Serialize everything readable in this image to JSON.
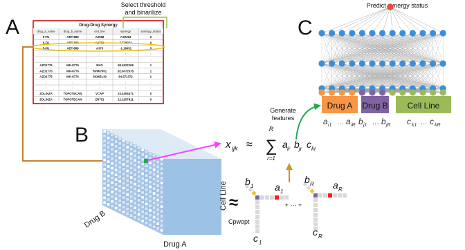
{
  "panel_labels": {
    "a": "A",
    "b": "B",
    "c": "C"
  },
  "table": {
    "title": "Drug-Drug Synergy",
    "columns": [
      "drug_a_name",
      "drug_b_name",
      "cell_line",
      "synergy",
      "synergy_status"
    ],
    "rows": [
      [
        "5-FU",
        "ABT-888",
        "A2058",
        "7.69353",
        "0"
      ],
      [
        "5-FU",
        "ABT-888",
        "A2780",
        "7.778053",
        "0"
      ],
      [
        "5-FU",
        "ABT-888",
        "A375",
        "-1.19651",
        "0"
      ],
      [
        ":",
        ":",
        ":",
        ":",
        ":"
      ],
      [
        ":",
        ":",
        ":",
        ":",
        ":"
      ],
      [
        "AZD1775",
        "MK-8776",
        "RKO",
        "58.4522269",
        "1"
      ],
      [
        "AZD1775",
        "MK-8776",
        "RPMI7951",
        "82.6072978",
        "1"
      ],
      [
        "AZD1775",
        "MK-8776",
        "SKMEL30",
        "64.571372",
        "1"
      ],
      [
        ":",
        ":",
        ":",
        ":",
        ":"
      ],
      [
        ":",
        ":",
        ":",
        ":",
        ":"
      ],
      [
        "ZOLINZA",
        "TOPOTECAN",
        "VCAP",
        "23.4305471",
        "0"
      ],
      [
        "ZOLINZA",
        "TOPOTECAN",
        "ZR751",
        "12.2257911",
        "0"
      ]
    ]
  },
  "threshold_caption": [
    "Select threshold",
    "and binarilize"
  ],
  "cube_axes": {
    "left": "Drug B",
    "bottom": "Drug A",
    "right": "Cell Line"
  },
  "method": "Cpwopt",
  "formula": {
    "lhs": "x",
    "lhs_sub": "ijk",
    "approx": "≈",
    "sum_top": "R",
    "sum_bottom": "r=1",
    "terms": [
      [
        "a",
        "ir"
      ],
      [
        "b",
        "jr"
      ],
      [
        "c",
        "kr"
      ]
    ]
  },
  "rank_one": {
    "first": [
      "b",
      "1",
      "a",
      "1",
      "c",
      "1"
    ],
    "last": [
      "b",
      "R",
      "a",
      "R",
      "c",
      "R"
    ],
    "plus_dots": "+ ··· +"
  },
  "generate_features": [
    "Generate",
    "features"
  ],
  "predict_label": "Predict synergy status",
  "feature_blocks": [
    {
      "label": "Drug A",
      "color": "#f79646",
      "formula": [
        "a",
        "i1",
        "…",
        "a",
        "iR"
      ]
    },
    {
      "label": "Drug B",
      "color": "#8064a2",
      "formula": [
        "b",
        "j1",
        "…",
        "b",
        "jR"
      ]
    },
    {
      "label": "Cell Line",
      "color": "#9bbb59",
      "formula": [
        "c",
        "k1",
        "…",
        "c",
        "kR"
      ]
    }
  ],
  "colors": {
    "nn_node": "#3b8fd8",
    "output_node": "#e84c3d",
    "cube_front": "#9cc2e5",
    "cube_side": "#bdd7ee",
    "cube_top": "#deebf7",
    "arrow_brown": "#c0701a",
    "arrow_magenta": "#ff3dff",
    "arrow_gold": "#c99a1f",
    "arrow_green": "#25a84f",
    "highlight": "#f0c419",
    "table_border": "#c00000"
  }
}
